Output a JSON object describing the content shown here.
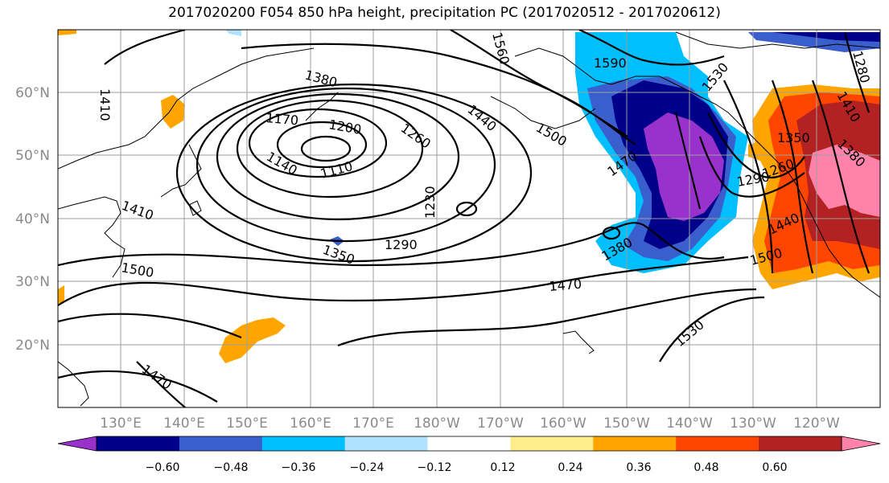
{
  "title": "2017020200 F054 850 hPa height, precipitation PC (2017020512 - 2017020612)",
  "map": {
    "lon_labels": [
      "130°E",
      "140°E",
      "150°E",
      "160°E",
      "170°E",
      "180°W",
      "170°W",
      "160°W",
      "150°W",
      "140°W",
      "130°W",
      "120°W"
    ],
    "lat_labels": [
      "60°N",
      "50°N",
      "40°N",
      "30°N",
      "20°N"
    ],
    "grid": true
  },
  "contour_labels": [
    "1410",
    "1380",
    "1170",
    "1200",
    "1260",
    "1440",
    "1500",
    "1590",
    "1560",
    "1530",
    "1110",
    "1140",
    "1470",
    "1230",
    "1290",
    "1350",
    "1500",
    "1470",
    "1380",
    "1470",
    "1530",
    "1290",
    "1260",
    "1440",
    "1500",
    "1410",
    "1350",
    "1380",
    "1280",
    "1410"
  ],
  "colorbar": {
    "ticks": [
      "−0.60",
      "−0.48",
      "−0.36",
      "−0.24",
      "−0.12",
      "0.12",
      "0.24",
      "0.36",
      "0.48",
      "0.60"
    ],
    "colors": [
      "#9932cc",
      "#00008b",
      "#3a5fcd",
      "#00bfff",
      "#b0e2ff",
      "#ffffff",
      "#ffec8b",
      "#ffa500",
      "#ff4500",
      "#b22222",
      "#ff82ab"
    ]
  }
}
